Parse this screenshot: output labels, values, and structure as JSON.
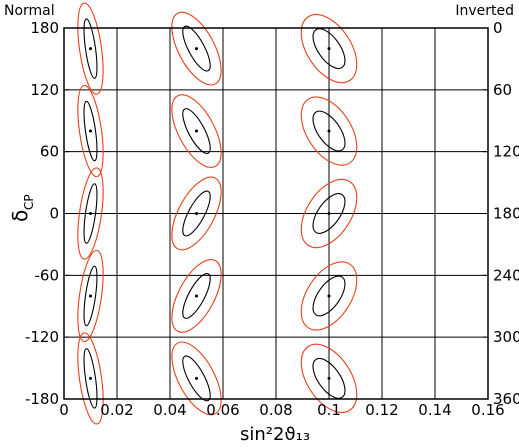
{
  "chart_data": {
    "type": "contour",
    "corner_labels": {
      "left": "Normal",
      "right": "Inverted"
    },
    "xlabel": "sin²2ϑ₁₃",
    "ylabel_main": "δ",
    "ylabel_sub": "CP",
    "xlim": [
      0,
      0.16
    ],
    "ylim": [
      -180,
      180
    ],
    "y2lim": [
      360,
      0
    ],
    "x_ticks": [
      0,
      0.02,
      0.04,
      0.06,
      0.08,
      0.1,
      0.12,
      0.14,
      0.16
    ],
    "x_tick_labels": [
      "0",
      "0.02",
      "0.04",
      "0.06",
      "0.08",
      "0.1",
      "0.12",
      "0.14",
      "0.16"
    ],
    "y_ticks": [
      -180,
      -120,
      -60,
      0,
      60,
      120,
      180
    ],
    "y_tick_labels": [
      "-180",
      "-120",
      "-60",
      "0",
      "60",
      "120",
      "180"
    ],
    "y2_ticks": [
      360,
      300,
      240,
      180,
      120,
      60,
      0
    ],
    "y2_tick_labels": [
      "360",
      "300",
      "240",
      "180",
      "120",
      "60",
      "0"
    ],
    "grid_x": [
      0.02,
      0.04,
      0.06,
      0.08,
      0.1,
      0.12,
      0.14
    ],
    "grid_y": [
      -120,
      -60,
      0,
      60,
      120
    ],
    "colors": {
      "inner": "#000000",
      "outer": "#e8401c",
      "grid": "#000000"
    },
    "true_points": [
      {
        "x": 0.01,
        "y": 160
      },
      {
        "x": 0.01,
        "y": 80
      },
      {
        "x": 0.01,
        "y": 0
      },
      {
        "x": 0.01,
        "y": -80
      },
      {
        "x": 0.01,
        "y": -160
      },
      {
        "x": 0.05,
        "y": 160
      },
      {
        "x": 0.05,
        "y": 80
      },
      {
        "x": 0.05,
        "y": 0
      },
      {
        "x": 0.05,
        "y": -80
      },
      {
        "x": 0.05,
        "y": -160
      },
      {
        "x": 0.1,
        "y": 160
      },
      {
        "x": 0.1,
        "y": 80
      },
      {
        "x": 0.1,
        "y": 0
      },
      {
        "x": 0.1,
        "y": -80
      },
      {
        "x": 0.1,
        "y": -160
      }
    ]
  }
}
